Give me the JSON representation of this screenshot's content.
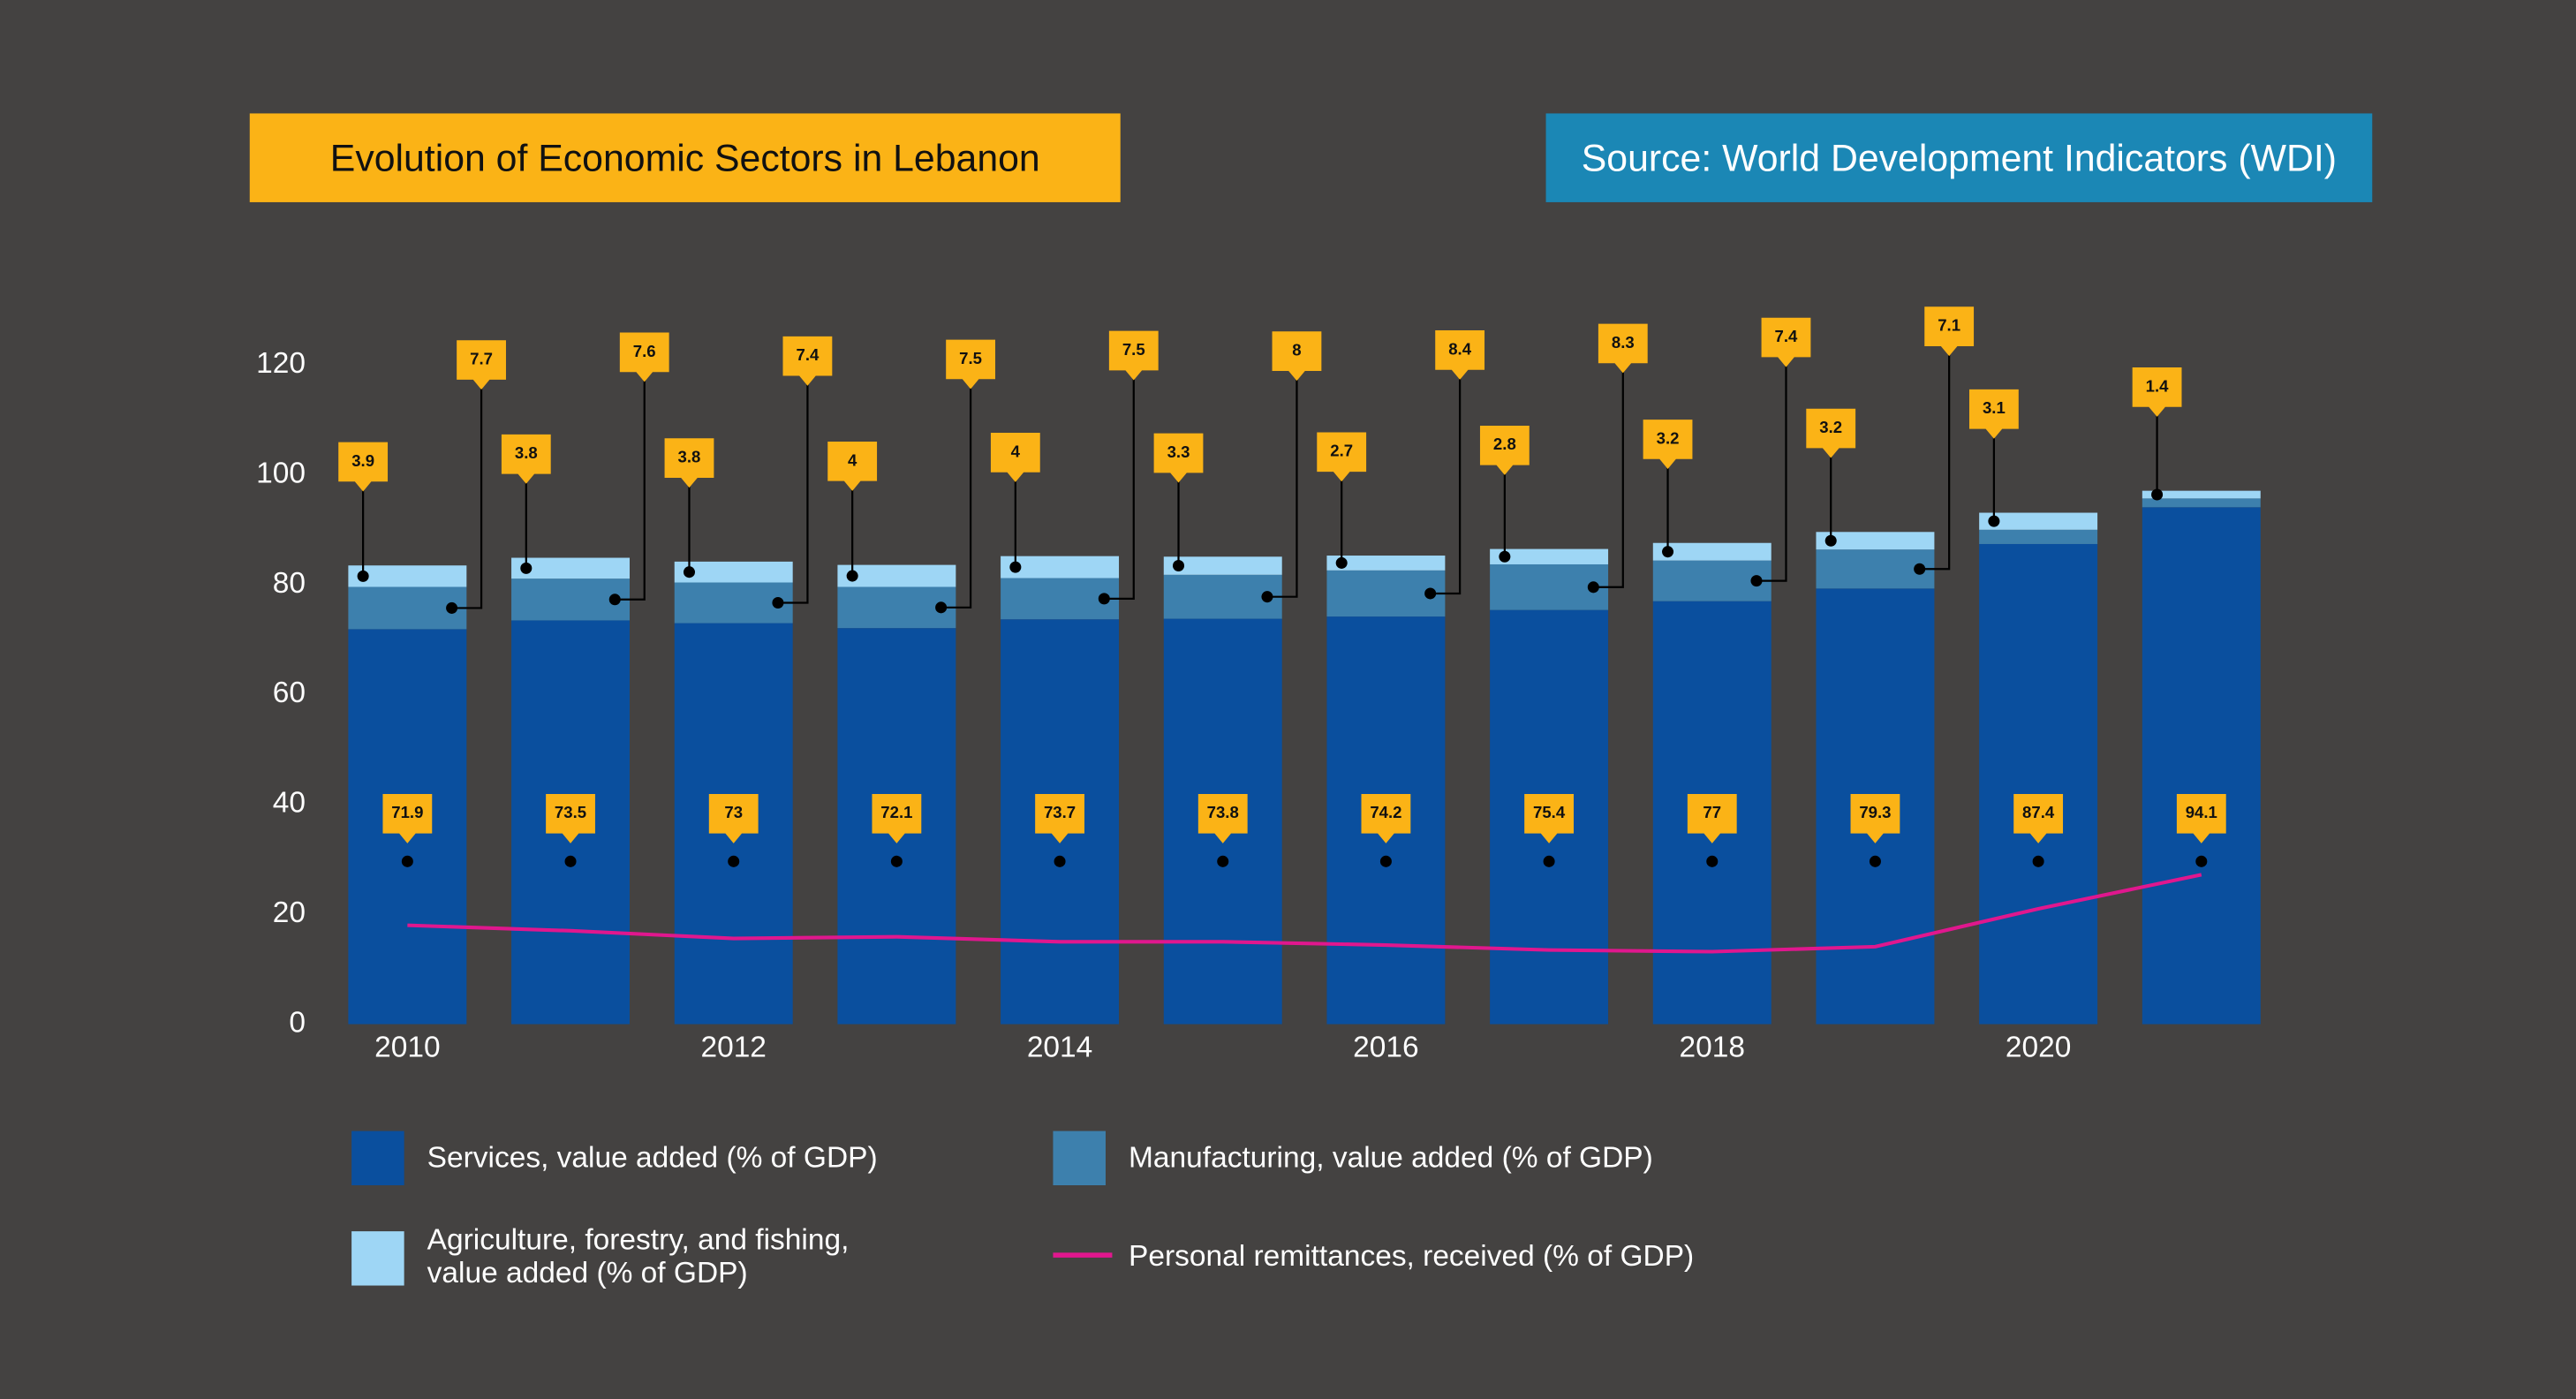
{
  "chart_data": {
    "type": "bar",
    "stacked": true,
    "title": "Evolution of Economic Sectors in Lebanon",
    "source": "Source: World Development Indicators (WDI)",
    "categories": [
      "2010",
      null,
      "2012",
      null,
      "2014",
      null,
      "2016",
      null,
      "2018",
      null,
      "2020",
      null
    ],
    "ylim": [
      0,
      120
    ],
    "yticks": [
      0,
      20,
      40,
      60,
      80,
      100,
      120
    ],
    "grid": false,
    "series": [
      {
        "name": "Services, value added (% of GDP)",
        "color": "#0a4f9e",
        "values": [
          71.9,
          73.5,
          73,
          72.1,
          73.7,
          73.8,
          74.2,
          75.4,
          77,
          79.3,
          87.4,
          94.1
        ]
      },
      {
        "name": "Manufacturing, value added (% of GDP)",
        "color": "#3d80ad",
        "values": [
          7.7,
          7.6,
          7.4,
          7.5,
          7.5,
          8,
          8.4,
          8.3,
          7.4,
          7.1,
          2.6,
          1.6
        ],
        "value_labels": [
          "7.7",
          "7.6",
          "7.4",
          "7.5",
          "7.5",
          "8",
          "8.4",
          "8.3",
          "7.4",
          "7.1",
          null,
          null
        ]
      },
      {
        "name": "Agriculture, forestry, and fishing, value added (% of GDP)",
        "color": "#9ed6f5",
        "values": [
          3.9,
          3.8,
          3.8,
          4,
          4,
          3.3,
          2.7,
          2.8,
          3.2,
          3.2,
          3.1,
          1.4
        ]
      },
      {
        "name": "Personal remittances, received (% of GDP)",
        "color": "#e0178e",
        "type": "line",
        "values": [
          18,
          17,
          15.6,
          15.9,
          15,
          15,
          14.4,
          13.5,
          13.2,
          14.1,
          21,
          27.2
        ]
      }
    ]
  }
}
